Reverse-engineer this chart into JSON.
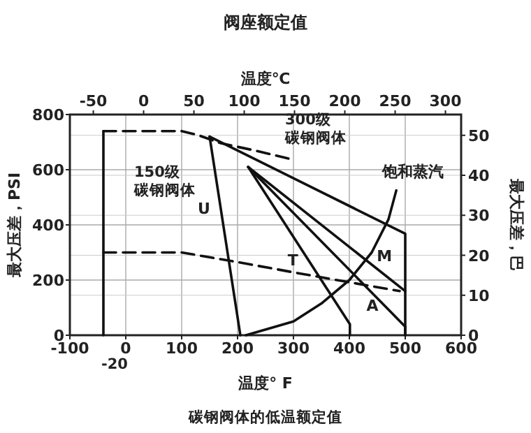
{
  "chart_data": {
    "type": "line",
    "title": "阀座额定值",
    "xlabel": "温度° F",
    "x2label": "温度℃",
    "ylabel": "最大压差，PSI",
    "y2label": "最大压差，巴",
    "xlim": [
      -100,
      600
    ],
    "xticks": [
      -100,
      0,
      100,
      200,
      300,
      400,
      500,
      600
    ],
    "x2lim": [
      -73.3,
      315.6
    ],
    "x2ticks": [
      -50,
      0,
      50,
      100,
      150,
      200,
      250,
      300
    ],
    "ylim": [
      0,
      800
    ],
    "yticks": [
      0,
      200,
      400,
      600,
      800
    ],
    "y2lim": [
      0,
      55.2
    ],
    "y2ticks": [
      0,
      10,
      20,
      30,
      40,
      50
    ],
    "grid": true,
    "series": [
      {
        "color": "#111111",
        "line_style": "solid",
        "x": [
          -40,
          -40
        ],
        "values": [
          0,
          740
        ]
      },
      {
        "color": "#111111",
        "line_style": "dashed",
        "x": [
          -40,
          100,
          130,
          170,
          230,
          300
        ],
        "values": [
          740,
          740,
          725,
          696,
          670,
          636
        ]
      },
      {
        "color": "#111111",
        "line_style": "dashed",
        "x": [
          -40,
          100,
          200,
          300,
          400,
          490
        ],
        "values": [
          300,
          300,
          265,
          228,
          192,
          160
        ]
      },
      {
        "name": "U",
        "color": "#111111",
        "line_style": "solid",
        "x": [
          150,
          205
        ],
        "values": [
          720,
          0
        ]
      },
      {
        "color": "#111111",
        "line_style": "solid",
        "x": [
          150,
          500,
          500
        ],
        "values": [
          720,
          368,
          0
        ]
      },
      {
        "name": "T",
        "color": "#111111",
        "line_style": "solid",
        "x": [
          219,
          401,
          401
        ],
        "values": [
          610,
          40,
          0
        ]
      },
      {
        "name": "M",
        "color": "#111111",
        "line_style": "solid",
        "x": [
          219,
          500
        ],
        "values": [
          610,
          160
        ]
      },
      {
        "name": "A",
        "color": "#111111",
        "line_style": "solid",
        "x": [
          219,
          500,
          500
        ],
        "values": [
          610,
          31,
          0
        ]
      },
      {
        "name": "饱和蒸汽",
        "color": "#111111",
        "line_style": "solid",
        "x": [
          215,
          300,
          350,
          400,
          440,
          470,
          484
        ],
        "values": [
          0,
          50,
          115,
          200,
          300,
          420,
          525
        ]
      }
    ],
    "annotations": [
      "300级",
      "碳钢阀体",
      "150级",
      "碳钢阀体",
      "-20",
      "碳钢阀体的低温额定值"
    ]
  }
}
